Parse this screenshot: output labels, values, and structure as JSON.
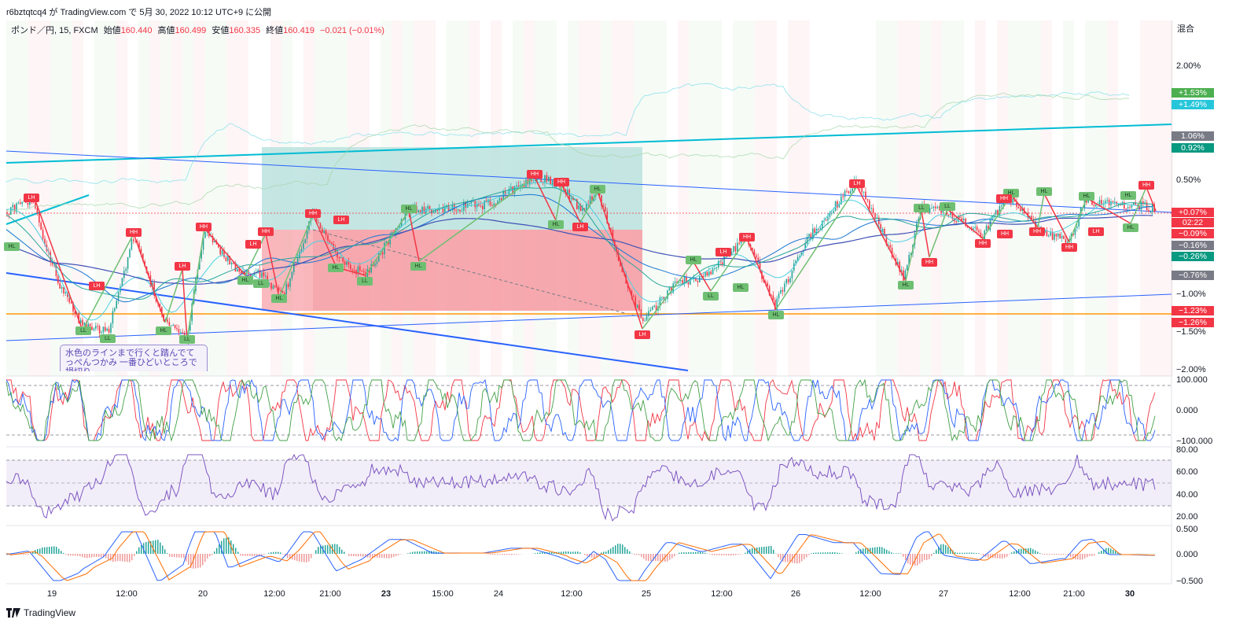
{
  "header": {
    "publish_text": "r6bztqtcq4 が TradingView.com で 5月 30, 2022 10:12 UTC+9 に公開"
  },
  "legend": {
    "symbol": "ポンド／円, 15, FXCM",
    "open_label": "始値",
    "open": "160.440",
    "high_label": "高値",
    "high": "160.499",
    "low_label": "安値",
    "low": "160.335",
    "close_label": "終値",
    "close": "160.419",
    "change": "−0.021 (−0.01%)"
  },
  "scale_mode": "混合",
  "price_axis": [
    "2.00%",
    "0.50%",
    "−1.00%",
    "−1.50%",
    "−2.00%"
  ],
  "price_tags": [
    {
      "label": "+1.53%",
      "color": "#4caf50"
    },
    {
      "label": "+1.49%",
      "color": "#26c6da"
    },
    {
      "label": "1.06%",
      "color": "#787b86"
    },
    {
      "label": "0.92%",
      "color": "#089981"
    },
    {
      "label": "+0.07%",
      "color": "#f23645"
    },
    {
      "label": "02:22",
      "color": "#f23645"
    },
    {
      "label": "−0.09%",
      "color": "#f23645"
    },
    {
      "label": "−0.16%",
      "color": "#787b86"
    },
    {
      "label": "−0.26%",
      "color": "#089981"
    },
    {
      "label": "−0.76%",
      "color": "#787b86"
    },
    {
      "label": "−1.23%",
      "color": "#f23645"
    },
    {
      "label": "−1.26%",
      "color": "#f23645"
    }
  ],
  "stoch_axis": [
    "100.000",
    "0.000",
    "−100.000"
  ],
  "rsi_axis": [
    "80.00",
    "60.00",
    "40.00",
    "20.00"
  ],
  "macd_axis": [
    "0.500",
    "0.000",
    "−0.500"
  ],
  "time_axis": [
    "19",
    "12:00",
    "20",
    "12:00",
    "21:00",
    "23",
    "15:00",
    "24",
    "12:00",
    "25",
    "12:00",
    "26",
    "12:00",
    "27",
    "12:00",
    "21:00",
    "30"
  ],
  "note_text": "水色のラインまで行くと踏んでてっぺんつかみ 一番ひどいところで損切り",
  "swing_labels": [
    "LH",
    "LL",
    "LL",
    "LH",
    "LL",
    "HH",
    "HL",
    "LL",
    "LH",
    "HL",
    "LL",
    "HH",
    "HL",
    "LH",
    "HH",
    "HL",
    "LL",
    "HH",
    "LH",
    "HL",
    "HL",
    "HH",
    "HL",
    "HH",
    "LH",
    "HL",
    "LH",
    "HL",
    "LL",
    "LH",
    "HL",
    "HH",
    "HL",
    "LH",
    "HL",
    "LL",
    "HH",
    "LL",
    "HH",
    "HL",
    "HH",
    "HL",
    "HH",
    "HL",
    "HH",
    "HL",
    "LH",
    "HL",
    "HH",
    "HH",
    "HL"
  ],
  "colors": {
    "candle_up": "#26a69a",
    "candle_down": "#f23645",
    "cyan_line": "#00bcd4",
    "blue_line": "#2962ff",
    "orange_line": "#ff9800",
    "profit_zone": "#b2dfdb",
    "loss_zone": "#f7a1a8"
  },
  "footer": {
    "brand": "TradingView"
  }
}
